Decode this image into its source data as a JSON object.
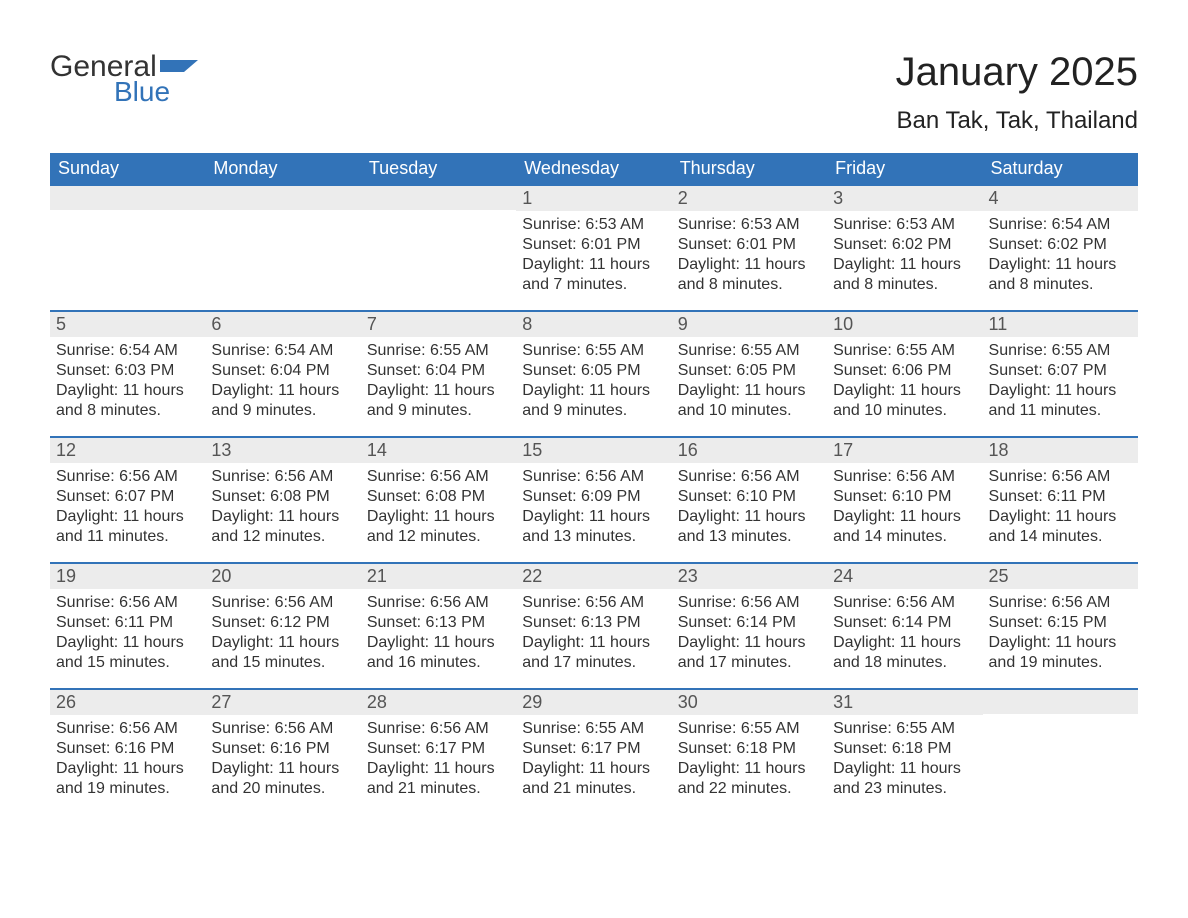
{
  "logo": {
    "general": "General",
    "blue": "Blue",
    "flag_color": "#3273b8"
  },
  "title": "January 2025",
  "location": "Ban Tak, Tak, Thailand",
  "colors": {
    "header_bg": "#3273b8",
    "header_text": "#ffffff",
    "daynum_bg": "#ececec",
    "text": "#333333",
    "border": "#3273b8",
    "background": "#ffffff"
  },
  "typography": {
    "title_fontsize": 40,
    "location_fontsize": 24,
    "weekday_fontsize": 18,
    "daynum_fontsize": 18,
    "detail_fontsize": 16,
    "font_family": "Arial"
  },
  "weekdays": [
    "Sunday",
    "Monday",
    "Tuesday",
    "Wednesday",
    "Thursday",
    "Friday",
    "Saturday"
  ],
  "weeks": [
    [
      {
        "day": "",
        "sunrise": "",
        "sunset": "",
        "daylight": ""
      },
      {
        "day": "",
        "sunrise": "",
        "sunset": "",
        "daylight": ""
      },
      {
        "day": "",
        "sunrise": "",
        "sunset": "",
        "daylight": ""
      },
      {
        "day": "1",
        "sunrise": "Sunrise: 6:53 AM",
        "sunset": "Sunset: 6:01 PM",
        "daylight": "Daylight: 11 hours and 7 minutes."
      },
      {
        "day": "2",
        "sunrise": "Sunrise: 6:53 AM",
        "sunset": "Sunset: 6:01 PM",
        "daylight": "Daylight: 11 hours and 8 minutes."
      },
      {
        "day": "3",
        "sunrise": "Sunrise: 6:53 AM",
        "sunset": "Sunset: 6:02 PM",
        "daylight": "Daylight: 11 hours and 8 minutes."
      },
      {
        "day": "4",
        "sunrise": "Sunrise: 6:54 AM",
        "sunset": "Sunset: 6:02 PM",
        "daylight": "Daylight: 11 hours and 8 minutes."
      }
    ],
    [
      {
        "day": "5",
        "sunrise": "Sunrise: 6:54 AM",
        "sunset": "Sunset: 6:03 PM",
        "daylight": "Daylight: 11 hours and 8 minutes."
      },
      {
        "day": "6",
        "sunrise": "Sunrise: 6:54 AM",
        "sunset": "Sunset: 6:04 PM",
        "daylight": "Daylight: 11 hours and 9 minutes."
      },
      {
        "day": "7",
        "sunrise": "Sunrise: 6:55 AM",
        "sunset": "Sunset: 6:04 PM",
        "daylight": "Daylight: 11 hours and 9 minutes."
      },
      {
        "day": "8",
        "sunrise": "Sunrise: 6:55 AM",
        "sunset": "Sunset: 6:05 PM",
        "daylight": "Daylight: 11 hours and 9 minutes."
      },
      {
        "day": "9",
        "sunrise": "Sunrise: 6:55 AM",
        "sunset": "Sunset: 6:05 PM",
        "daylight": "Daylight: 11 hours and 10 minutes."
      },
      {
        "day": "10",
        "sunrise": "Sunrise: 6:55 AM",
        "sunset": "Sunset: 6:06 PM",
        "daylight": "Daylight: 11 hours and 10 minutes."
      },
      {
        "day": "11",
        "sunrise": "Sunrise: 6:55 AM",
        "sunset": "Sunset: 6:07 PM",
        "daylight": "Daylight: 11 hours and 11 minutes."
      }
    ],
    [
      {
        "day": "12",
        "sunrise": "Sunrise: 6:56 AM",
        "sunset": "Sunset: 6:07 PM",
        "daylight": "Daylight: 11 hours and 11 minutes."
      },
      {
        "day": "13",
        "sunrise": "Sunrise: 6:56 AM",
        "sunset": "Sunset: 6:08 PM",
        "daylight": "Daylight: 11 hours and 12 minutes."
      },
      {
        "day": "14",
        "sunrise": "Sunrise: 6:56 AM",
        "sunset": "Sunset: 6:08 PM",
        "daylight": "Daylight: 11 hours and 12 minutes."
      },
      {
        "day": "15",
        "sunrise": "Sunrise: 6:56 AM",
        "sunset": "Sunset: 6:09 PM",
        "daylight": "Daylight: 11 hours and 13 minutes."
      },
      {
        "day": "16",
        "sunrise": "Sunrise: 6:56 AM",
        "sunset": "Sunset: 6:10 PM",
        "daylight": "Daylight: 11 hours and 13 minutes."
      },
      {
        "day": "17",
        "sunrise": "Sunrise: 6:56 AM",
        "sunset": "Sunset: 6:10 PM",
        "daylight": "Daylight: 11 hours and 14 minutes."
      },
      {
        "day": "18",
        "sunrise": "Sunrise: 6:56 AM",
        "sunset": "Sunset: 6:11 PM",
        "daylight": "Daylight: 11 hours and 14 minutes."
      }
    ],
    [
      {
        "day": "19",
        "sunrise": "Sunrise: 6:56 AM",
        "sunset": "Sunset: 6:11 PM",
        "daylight": "Daylight: 11 hours and 15 minutes."
      },
      {
        "day": "20",
        "sunrise": "Sunrise: 6:56 AM",
        "sunset": "Sunset: 6:12 PM",
        "daylight": "Daylight: 11 hours and 15 minutes."
      },
      {
        "day": "21",
        "sunrise": "Sunrise: 6:56 AM",
        "sunset": "Sunset: 6:13 PM",
        "daylight": "Daylight: 11 hours and 16 minutes."
      },
      {
        "day": "22",
        "sunrise": "Sunrise: 6:56 AM",
        "sunset": "Sunset: 6:13 PM",
        "daylight": "Daylight: 11 hours and 17 minutes."
      },
      {
        "day": "23",
        "sunrise": "Sunrise: 6:56 AM",
        "sunset": "Sunset: 6:14 PM",
        "daylight": "Daylight: 11 hours and 17 minutes."
      },
      {
        "day": "24",
        "sunrise": "Sunrise: 6:56 AM",
        "sunset": "Sunset: 6:14 PM",
        "daylight": "Daylight: 11 hours and 18 minutes."
      },
      {
        "day": "25",
        "sunrise": "Sunrise: 6:56 AM",
        "sunset": "Sunset: 6:15 PM",
        "daylight": "Daylight: 11 hours and 19 minutes."
      }
    ],
    [
      {
        "day": "26",
        "sunrise": "Sunrise: 6:56 AM",
        "sunset": "Sunset: 6:16 PM",
        "daylight": "Daylight: 11 hours and 19 minutes."
      },
      {
        "day": "27",
        "sunrise": "Sunrise: 6:56 AM",
        "sunset": "Sunset: 6:16 PM",
        "daylight": "Daylight: 11 hours and 20 minutes."
      },
      {
        "day": "28",
        "sunrise": "Sunrise: 6:56 AM",
        "sunset": "Sunset: 6:17 PM",
        "daylight": "Daylight: 11 hours and 21 minutes."
      },
      {
        "day": "29",
        "sunrise": "Sunrise: 6:55 AM",
        "sunset": "Sunset: 6:17 PM",
        "daylight": "Daylight: 11 hours and 21 minutes."
      },
      {
        "day": "30",
        "sunrise": "Sunrise: 6:55 AM",
        "sunset": "Sunset: 6:18 PM",
        "daylight": "Daylight: 11 hours and 22 minutes."
      },
      {
        "day": "31",
        "sunrise": "Sunrise: 6:55 AM",
        "sunset": "Sunset: 6:18 PM",
        "daylight": "Daylight: 11 hours and 23 minutes."
      },
      {
        "day": "",
        "sunrise": "",
        "sunset": "",
        "daylight": ""
      }
    ]
  ]
}
